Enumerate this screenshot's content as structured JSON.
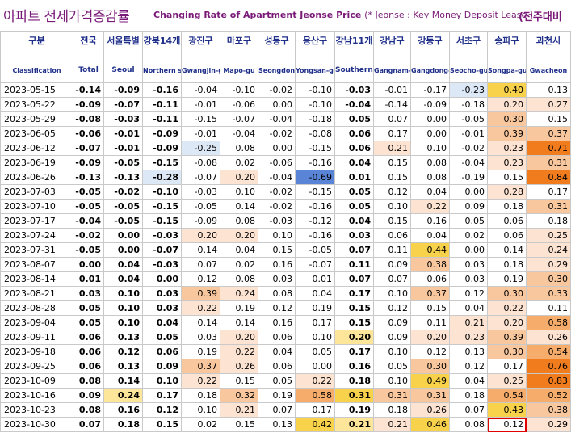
{
  "title": {
    "korean": "아파트 전세가격증감률",
    "english": "Changing Rate of Apartment Jeonse Price",
    "note": "(* Jeonse : Key Money Deposit Lease )",
    "comparison": "(전주대비"
  },
  "columns": [
    {
      "ko": "구분",
      "en": "Classification"
    },
    {
      "ko": "전국",
      "en": "Total"
    },
    {
      "ko": "서울특별",
      "en": "Seoul"
    },
    {
      "ko": "강북14개",
      "en": "Northern seoul"
    },
    {
      "ko": "광진구",
      "en": "Gwangjin-gu"
    },
    {
      "ko": "마포구",
      "en": "Mapo-gu"
    },
    {
      "ko": "성동구",
      "en": "Seongdong-gu"
    },
    {
      "ko": "용산구",
      "en": "Yongsan-gu"
    },
    {
      "ko": "강남11개",
      "en": "Southern Seoul"
    },
    {
      "ko": "강남구",
      "en": "Gangnam-gu"
    },
    {
      "ko": "강동구",
      "en": "Gangdong-gu"
    },
    {
      "ko": "서초구",
      "en": "Seocho-gu"
    },
    {
      "ko": "송파구",
      "en": "Songpa-gu"
    },
    {
      "ko": "과천시",
      "en": "Gwacheon"
    }
  ],
  "rows": [
    {
      "date": "2023-05-15",
      "v": [
        "-0.14",
        "-0.09",
        "-0.16",
        "-0.04",
        "-0.10",
        "-0.02",
        "-0.10",
        "-0.03",
        "-0.01",
        "-0.17",
        "-0.23",
        "0.40",
        "0.13"
      ]
    },
    {
      "date": "2023-05-22",
      "v": [
        "-0.09",
        "-0.07",
        "-0.11",
        "-0.01",
        "-0.06",
        "0.00",
        "-0.10",
        "-0.04",
        "-0.14",
        "-0.09",
        "-0.18",
        "0.20",
        "0.27"
      ]
    },
    {
      "date": "2023-05-29",
      "v": [
        "-0.08",
        "-0.03",
        "-0.11",
        "-0.15",
        "-0.07",
        "-0.04",
        "-0.18",
        "0.05",
        "0.07",
        "0.00",
        "-0.05",
        "0.30",
        "0.15"
      ]
    },
    {
      "date": "2023-06-05",
      "v": [
        "-0.06",
        "-0.01",
        "-0.09",
        "-0.01",
        "-0.04",
        "-0.02",
        "-0.08",
        "0.06",
        "0.17",
        "0.00",
        "-0.01",
        "0.39",
        "0.37"
      ]
    },
    {
      "date": "2023-06-12",
      "v": [
        "-0.07",
        "-0.01",
        "-0.09",
        "-0.25",
        "0.08",
        "0.00",
        "-0.15",
        "0.06",
        "0.21",
        "0.10",
        "-0.02",
        "0.23",
        "0.71"
      ]
    },
    {
      "date": "2023-06-19",
      "v": [
        "-0.09",
        "-0.05",
        "-0.15",
        "-0.08",
        "0.02",
        "-0.06",
        "-0.16",
        "0.04",
        "0.15",
        "0.08",
        "-0.04",
        "0.23",
        "0.31"
      ]
    },
    {
      "date": "2023-06-26",
      "v": [
        "-0.13",
        "-0.13",
        "-0.28",
        "-0.07",
        "0.20",
        "-0.04",
        "-0.69",
        "0.01",
        "0.15",
        "0.08",
        "-0.19",
        "0.15",
        "0.84"
      ]
    },
    {
      "date": "2023-07-03",
      "v": [
        "-0.05",
        "-0.02",
        "-0.10",
        "-0.03",
        "0.10",
        "-0.02",
        "-0.15",
        "0.05",
        "0.12",
        "0.04",
        "0.00",
        "0.28",
        "0.17"
      ]
    },
    {
      "date": "2023-07-10",
      "v": [
        "-0.05",
        "-0.05",
        "-0.15",
        "-0.05",
        "0.14",
        "-0.02",
        "-0.16",
        "0.05",
        "0.10",
        "0.22",
        "0.09",
        "0.18",
        "0.31"
      ]
    },
    {
      "date": "2023-07-17",
      "v": [
        "-0.04",
        "-0.05",
        "-0.15",
        "-0.09",
        "0.08",
        "-0.03",
        "-0.12",
        "0.04",
        "0.15",
        "0.16",
        "0.05",
        "0.06",
        "0.18"
      ]
    },
    {
      "date": "2023-07-24",
      "v": [
        "-0.02",
        "0.00",
        "-0.03",
        "0.20",
        "0.20",
        "0.10",
        "-0.16",
        "0.03",
        "0.06",
        "0.04",
        "0.02",
        "0.06",
        "0.25"
      ]
    },
    {
      "date": "2023-07-31",
      "v": [
        "-0.05",
        "0.00",
        "-0.07",
        "0.14",
        "0.04",
        "0.15",
        "-0.05",
        "0.07",
        "0.11",
        "0.44",
        "0.00",
        "0.14",
        "0.24"
      ]
    },
    {
      "date": "2023-08-07",
      "v": [
        "0.00",
        "0.04",
        "-0.03",
        "0.07",
        "0.02",
        "0.16",
        "-0.07",
        "0.11",
        "0.09",
        "0.38",
        "0.03",
        "0.18",
        "0.29"
      ]
    },
    {
      "date": "2023-08-14",
      "v": [
        "0.01",
        "0.04",
        "0.00",
        "0.12",
        "0.08",
        "0.03",
        "0.01",
        "0.07",
        "0.07",
        "0.06",
        "0.03",
        "0.19",
        "0.30"
      ]
    },
    {
      "date": "2023-08-21",
      "v": [
        "0.03",
        "0.10",
        "0.03",
        "0.39",
        "0.24",
        "0.08",
        "0.04",
        "0.17",
        "0.10",
        "0.37",
        "0.12",
        "0.30",
        "0.33"
      ]
    },
    {
      "date": "2023-08-28",
      "v": [
        "0.05",
        "0.10",
        "0.03",
        "0.22",
        "0.19",
        "0.12",
        "0.19",
        "0.15",
        "0.12",
        "0.15",
        "0.04",
        "0.22",
        "0.11"
      ]
    },
    {
      "date": "2023-09-04",
      "v": [
        "0.05",
        "0.10",
        "0.04",
        "0.14",
        "0.14",
        "0.16",
        "0.17",
        "0.15",
        "0.09",
        "0.11",
        "0.21",
        "0.20",
        "0.58"
      ]
    },
    {
      "date": "2023-09-11",
      "v": [
        "0.06",
        "0.13",
        "0.05",
        "0.03",
        "0.20",
        "0.06",
        "0.10",
        "0.20",
        "0.09",
        "0.20",
        "0.23",
        "0.39",
        "0.26"
      ]
    },
    {
      "date": "2023-09-18",
      "v": [
        "0.06",
        "0.12",
        "0.06",
        "0.19",
        "0.22",
        "0.04",
        "0.05",
        "0.17",
        "0.10",
        "0.12",
        "0.13",
        "0.30",
        "0.54"
      ]
    },
    {
      "date": "2023-09-25",
      "v": [
        "0.06",
        "0.13",
        "0.09",
        "0.37",
        "0.26",
        "0.06",
        "0.00",
        "0.16",
        "0.05",
        "0.30",
        "0.12",
        "0.17",
        "0.76"
      ]
    },
    {
      "date": "2023-10-09",
      "v": [
        "0.08",
        "0.14",
        "0.10",
        "0.22",
        "0.15",
        "0.05",
        "0.22",
        "0.18",
        "0.10",
        "0.49",
        "0.04",
        "0.25",
        "0.83"
      ]
    },
    {
      "date": "2023-10-16",
      "v": [
        "0.09",
        "0.24",
        "0.17",
        "0.18",
        "0.32",
        "0.19",
        "0.58",
        "0.31",
        "0.31",
        "0.31",
        "0.18",
        "0.54",
        "0.52"
      ]
    },
    {
      "date": "2023-10-23",
      "v": [
        "0.08",
        "0.16",
        "0.12",
        "0.10",
        "0.21",
        "0.07",
        "0.17",
        "0.19",
        "0.18",
        "0.26",
        "0.07",
        "0.43",
        "0.38"
      ]
    },
    {
      "date": "2023-10-30",
      "v": [
        "0.07",
        "0.18",
        "0.15",
        "0.02",
        "0.15",
        "0.13",
        "0.42",
        "0.21",
        "0.21",
        "0.46",
        "0.08",
        "0.12",
        "0.29"
      ]
    }
  ],
  "bold_columns": [
    0,
    1,
    2,
    7
  ],
  "highlight": {
    "row": 23,
    "col": 11,
    "color": "#e00000"
  },
  "colors": {
    "title": "#7a1a78",
    "header_text": "#1f2f8a",
    "pos_light": "#fde3d2",
    "pos_mid": "#f9c79e",
    "pos_orange": "#f6ac6a",
    "pos_strong": "#f07c1e",
    "yellow_light": "#fde59a",
    "yellow_mid": "#f9d24b",
    "neg_light": "#dde8f6",
    "neg_strong": "#5a84d6"
  }
}
